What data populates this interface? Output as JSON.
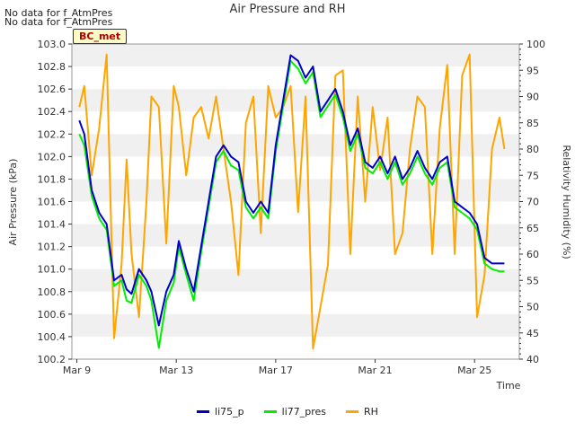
{
  "nodata_lines": [
    "No data for f_AtmPres",
    "No data for f_AtmPres"
  ],
  "badge": "BC_met",
  "chart_data": {
    "type": "line",
    "title": "Air Pressure and RH",
    "xlabel": "Time",
    "ylabel_left": "Air Pressure (kPa)",
    "ylabel_right": "Relativity Humidity (%)",
    "ylim_left": [
      100.2,
      103.0
    ],
    "ylim_right": [
      40,
      100
    ],
    "xlim": [
      8.8,
      26.8
    ],
    "x_ticks": [
      {
        "x": 9,
        "label": "Mar 9"
      },
      {
        "x": 13,
        "label": "Mar 13"
      },
      {
        "x": 17,
        "label": "Mar 17"
      },
      {
        "x": 21,
        "label": "Mar 21"
      },
      {
        "x": 25,
        "label": "Mar 25"
      }
    ],
    "y_ticks_left": [
      "100.2",
      "100.4",
      "100.6",
      "100.8",
      "101.0",
      "101.2",
      "101.4",
      "101.6",
      "101.8",
      "102.0",
      "102.2",
      "102.4",
      "102.6",
      "102.8",
      "103.0"
    ],
    "y_ticks_right": [
      "40",
      "45",
      "50",
      "55",
      "60",
      "65",
      "70",
      "75",
      "80",
      "85",
      "90",
      "95",
      "100"
    ],
    "grid": "horizontal bands",
    "legend_position": "bottom-center",
    "colors": {
      "li75_p": "#0000cc",
      "li77_pres": "#00ee00",
      "RH": "#ffa500",
      "band": "#f0f0f0"
    },
    "x": [
      9.1,
      9.3,
      9.6,
      9.9,
      10.2,
      10.5,
      10.8,
      11.0,
      11.2,
      11.5,
      11.8,
      12.0,
      12.3,
      12.6,
      12.9,
      13.1,
      13.4,
      13.7,
      14.0,
      14.3,
      14.6,
      14.9,
      15.2,
      15.5,
      15.8,
      16.1,
      16.4,
      16.7,
      17.0,
      17.3,
      17.6,
      17.9,
      18.2,
      18.5,
      18.8,
      19.1,
      19.4,
      19.7,
      20.0,
      20.3,
      20.6,
      20.9,
      21.2,
      21.5,
      21.8,
      22.1,
      22.4,
      22.7,
      23.0,
      23.3,
      23.6,
      23.9,
      24.2,
      24.5,
      24.8,
      25.1,
      25.4,
      25.7,
      26.0,
      26.2
    ],
    "series": [
      {
        "name": "li75_p",
        "axis": "left",
        "values": [
          102.32,
          102.2,
          101.7,
          101.5,
          101.4,
          100.9,
          100.95,
          100.82,
          100.78,
          101.0,
          100.9,
          100.8,
          100.5,
          100.8,
          100.95,
          101.25,
          101.0,
          100.8,
          101.2,
          101.6,
          102.0,
          102.1,
          102.0,
          101.95,
          101.6,
          101.5,
          101.6,
          101.5,
          102.1,
          102.5,
          102.9,
          102.85,
          102.7,
          102.8,
          102.4,
          102.5,
          102.6,
          102.4,
          102.1,
          102.25,
          101.95,
          101.9,
          102.0,
          101.85,
          102.0,
          101.8,
          101.9,
          102.05,
          101.9,
          101.8,
          101.95,
          102.0,
          101.6,
          101.55,
          101.5,
          101.4,
          101.1,
          101.05,
          101.05,
          101.05
        ]
      },
      {
        "name": "li77_pres",
        "axis": "left",
        "values": [
          102.2,
          102.1,
          101.65,
          101.45,
          101.35,
          100.85,
          100.9,
          100.72,
          100.7,
          100.95,
          100.85,
          100.72,
          100.3,
          100.72,
          100.88,
          101.2,
          100.95,
          100.72,
          101.15,
          101.55,
          101.95,
          102.05,
          101.92,
          101.88,
          101.55,
          101.45,
          101.55,
          101.45,
          102.05,
          102.45,
          102.85,
          102.78,
          102.65,
          102.75,
          102.35,
          102.45,
          102.55,
          102.35,
          102.05,
          102.2,
          101.9,
          101.85,
          101.95,
          101.8,
          101.95,
          101.75,
          101.85,
          102.0,
          101.85,
          101.75,
          101.9,
          101.95,
          101.55,
          101.5,
          101.45,
          101.35,
          101.05,
          101.0,
          100.98,
          100.98
        ]
      },
      {
        "name": "RH",
        "axis": "right",
        "values": [
          88,
          92,
          75,
          84,
          98,
          44,
          58,
          78,
          60,
          48,
          70,
          90,
          88,
          62,
          92,
          88,
          75,
          86,
          88,
          82,
          90,
          80,
          70,
          56,
          85,
          90,
          64,
          92,
          86,
          88,
          92,
          68,
          90,
          42,
          50,
          58,
          94,
          95,
          60,
          90,
          70,
          88,
          76,
          86,
          60,
          64,
          80,
          90,
          88,
          60,
          84,
          96,
          60,
          94,
          98,
          48,
          56,
          80,
          86,
          80
        ]
      }
    ]
  }
}
